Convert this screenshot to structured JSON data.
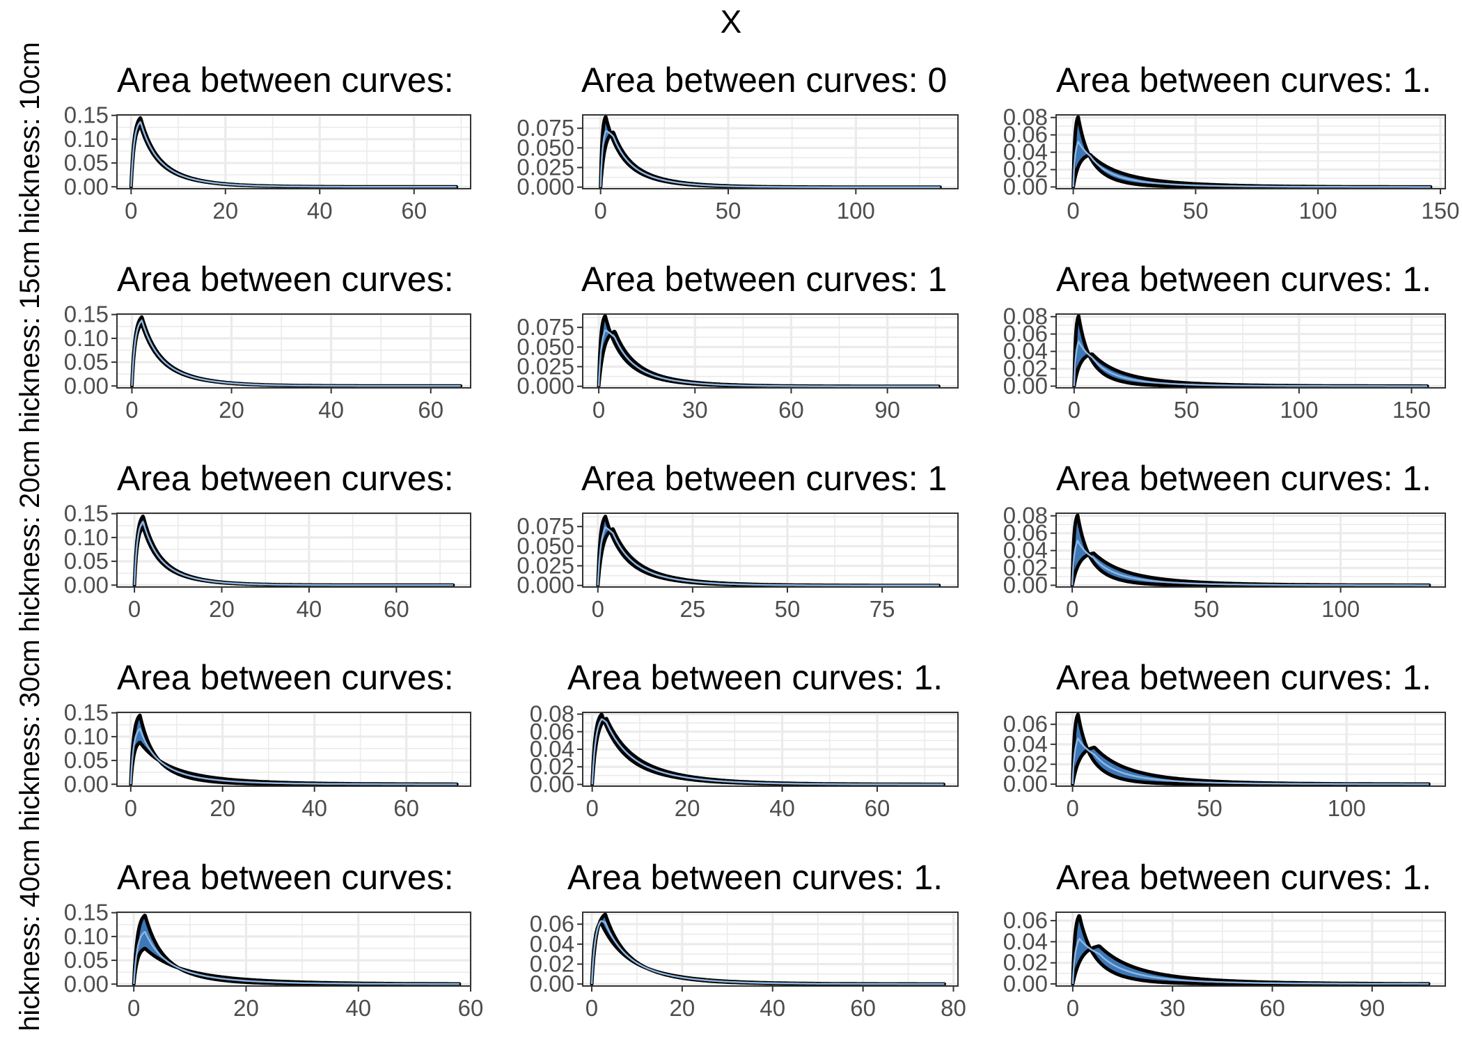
{
  "figure": {
    "title": "X"
  },
  "chart_data": [
    {
      "type": "area",
      "row": 0,
      "col": 0,
      "row_label": "hickness: 10cm",
      "title": "Area between curves: ",
      "xlim": [
        -3,
        72
      ],
      "x_ticks": [
        0,
        20,
        40,
        60
      ],
      "ylim": [
        -0.004,
        0.151
      ],
      "y_ticks": [
        0,
        0.05,
        0.1,
        0.15
      ],
      "y_tick_labels": [
        "0.00",
        "0.05",
        "0.10",
        "0.15"
      ],
      "x_max": 69,
      "upper": {
        "peak_x": 2,
        "peak_y": 0.145,
        "tail": 7
      },
      "lower": {
        "peak_x": 2,
        "peak_y": 0.128,
        "tail": 7
      }
    },
    {
      "type": "area",
      "row": 0,
      "col": 1,
      "row_label": "hickness: 10cm",
      "title": "Area between curves: 0",
      "xlim": [
        -7,
        140
      ],
      "x_ticks": [
        0,
        50,
        100
      ],
      "ylim": [
        -0.002,
        0.092
      ],
      "y_ticks": [
        0,
        0.025,
        0.05,
        0.075
      ],
      "y_tick_labels": [
        "0.000",
        "0.025",
        "0.050",
        "0.075"
      ],
      "x_max": 133,
      "upper": {
        "peak_x": 2,
        "peak_y": 0.09,
        "tail": 12
      },
      "lower": {
        "peak_x": 5,
        "peak_y": 0.07,
        "tail": 14
      }
    },
    {
      "type": "area",
      "row": 0,
      "col": 2,
      "row_label": "hickness: 10cm",
      "title": "Area between curves: 1.",
      "xlim": [
        -7,
        152
      ],
      "x_ticks": [
        0,
        50,
        100,
        150
      ],
      "ylim": [
        -0.002,
        0.083
      ],
      "y_ticks": [
        0,
        0.02,
        0.04,
        0.06,
        0.08
      ],
      "y_tick_labels": [
        "0.00",
        "0.02",
        "0.04",
        "0.06",
        "0.08"
      ],
      "x_max": 146,
      "upper": {
        "peak_x": 2,
        "peak_y": 0.081,
        "tail": 9
      },
      "lower": {
        "peak_x": 7,
        "peak_y": 0.037,
        "tail": 24
      }
    },
    {
      "type": "area",
      "row": 1,
      "col": 0,
      "row_label": "hickness: 15cm",
      "title": "Area between curves: ",
      "xlim": [
        -3,
        68
      ],
      "x_ticks": [
        0,
        20,
        40,
        60
      ],
      "ylim": [
        -0.004,
        0.151
      ],
      "y_ticks": [
        0,
        0.05,
        0.1,
        0.15
      ],
      "y_tick_labels": [
        "0.00",
        "0.05",
        "0.10",
        "0.15"
      ],
      "x_max": 66,
      "upper": {
        "peak_x": 2,
        "peak_y": 0.145,
        "tail": 7
      },
      "lower": {
        "peak_x": 2,
        "peak_y": 0.13,
        "tail": 7
      }
    },
    {
      "type": "area",
      "row": 1,
      "col": 1,
      "row_label": "hickness: 15cm",
      "title": "Area between curves: 1",
      "xlim": [
        -5,
        112
      ],
      "x_ticks": [
        0,
        30,
        60,
        90
      ],
      "ylim": [
        -0.002,
        0.092
      ],
      "y_ticks": [
        0,
        0.025,
        0.05,
        0.075
      ],
      "y_tick_labels": [
        "0.000",
        "0.025",
        "0.050",
        "0.075"
      ],
      "x_max": 106,
      "upper": {
        "peak_x": 2,
        "peak_y": 0.09,
        "tail": 10
      },
      "lower": {
        "peak_x": 5,
        "peak_y": 0.07,
        "tail": 12
      }
    },
    {
      "type": "area",
      "row": 1,
      "col": 2,
      "row_label": "hickness: 15cm",
      "title": "Area between curves: 1.",
      "xlim": [
        -8,
        165
      ],
      "x_ticks": [
        0,
        50,
        100,
        150
      ],
      "ylim": [
        -0.002,
        0.083
      ],
      "y_ticks": [
        0,
        0.02,
        0.04,
        0.06,
        0.08
      ],
      "y_tick_labels": [
        "0.00",
        "0.02",
        "0.04",
        "0.06",
        "0.08"
      ],
      "x_max": 157,
      "upper": {
        "peak_x": 2,
        "peak_y": 0.081,
        "tail": 9
      },
      "lower": {
        "peak_x": 8,
        "peak_y": 0.037,
        "tail": 24
      }
    },
    {
      "type": "area",
      "row": 2,
      "col": 0,
      "row_label": "hickness: 20cm",
      "title": "Area between curves: ",
      "xlim": [
        -4,
        77
      ],
      "x_ticks": [
        0,
        20,
        40,
        60
      ],
      "ylim": [
        -0.004,
        0.151
      ],
      "y_ticks": [
        0,
        0.05,
        0.1,
        0.15
      ],
      "y_tick_labels": [
        "0.00",
        "0.05",
        "0.10",
        "0.15"
      ],
      "x_max": 73,
      "upper": {
        "peak_x": 2,
        "peak_y": 0.145,
        "tail": 7
      },
      "lower": {
        "peak_x": 2,
        "peak_y": 0.122,
        "tail": 7
      }
    },
    {
      "type": "area",
      "row": 2,
      "col": 1,
      "row_label": "hickness: 20cm",
      "title": "Area between curves: 1",
      "xlim": [
        -4,
        95
      ],
      "x_ticks": [
        0,
        25,
        50,
        75
      ],
      "ylim": [
        -0.002,
        0.092
      ],
      "y_ticks": [
        0,
        0.025,
        0.05,
        0.075
      ],
      "y_tick_labels": [
        "0.000",
        "0.025",
        "0.050",
        "0.075"
      ],
      "x_max": 90,
      "upper": {
        "peak_x": 2,
        "peak_y": 0.088,
        "tail": 9
      },
      "lower": {
        "peak_x": 4,
        "peak_y": 0.072,
        "tail": 11
      }
    },
    {
      "type": "area",
      "row": 2,
      "col": 2,
      "row_label": "hickness: 20cm",
      "title": "Area between curves: 1.",
      "xlim": [
        -6,
        139
      ],
      "x_ticks": [
        0,
        50,
        100
      ],
      "ylim": [
        -0.002,
        0.083
      ],
      "y_ticks": [
        0,
        0.02,
        0.04,
        0.06,
        0.08
      ],
      "y_tick_labels": [
        "0.00",
        "0.02",
        "0.04",
        "0.06",
        "0.08"
      ],
      "x_max": 133,
      "upper": {
        "peak_x": 2,
        "peak_y": 0.081,
        "tail": 8
      },
      "lower": {
        "peak_x": 8,
        "peak_y": 0.037,
        "tail": 22
      }
    },
    {
      "type": "area",
      "row": 3,
      "col": 0,
      "row_label": "hickness: 30cm",
      "title": "Area between curves: ",
      "xlim": [
        -3,
        74
      ],
      "x_ticks": [
        0,
        20,
        40,
        60
      ],
      "ylim": [
        -0.004,
        0.151
      ],
      "y_ticks": [
        0,
        0.05,
        0.1,
        0.15
      ],
      "y_tick_labels": [
        "0.00",
        "0.05",
        "0.10",
        "0.15"
      ],
      "x_max": 71,
      "upper": {
        "peak_x": 2,
        "peak_y": 0.145,
        "tail": 6
      },
      "lower": {
        "peak_x": 2,
        "peak_y": 0.088,
        "tail": 12
      }
    },
    {
      "type": "area",
      "row": 3,
      "col": 1,
      "row_label": "hickness: 30cm",
      "title": "Area between curves: 1.",
      "xlim": [
        -2,
        77
      ],
      "x_ticks": [
        0,
        20,
        40,
        60
      ],
      "ylim": [
        -0.002,
        0.082
      ],
      "y_ticks": [
        0,
        0.02,
        0.04,
        0.06,
        0.08
      ],
      "y_tick_labels": [
        "0.00",
        "0.02",
        "0.04",
        "0.06",
        "0.08"
      ],
      "x_max": 74,
      "upper": {
        "peak_x": 2,
        "peak_y": 0.08,
        "tail": 9
      },
      "lower": {
        "peak_x": 3,
        "peak_y": 0.075,
        "tail": 11
      }
    },
    {
      "type": "area",
      "row": 3,
      "col": 2,
      "row_label": "hickness: 30cm",
      "title": "Area between curves: 1.",
      "xlim": [
        -6,
        136
      ],
      "x_ticks": [
        0,
        50,
        100
      ],
      "ylim": [
        -0.002,
        0.072
      ],
      "y_ticks": [
        0,
        0.02,
        0.04,
        0.06
      ],
      "y_tick_labels": [
        "0.00",
        "0.02",
        "0.04",
        "0.06"
      ],
      "x_max": 130,
      "upper": {
        "peak_x": 2,
        "peak_y": 0.07,
        "tail": 8
      },
      "lower": {
        "peak_x": 8,
        "peak_y": 0.037,
        "tail": 22
      }
    },
    {
      "type": "area",
      "row": 4,
      "col": 0,
      "row_label": "hickness: 40cm",
      "title": "Area between curves: ",
      "xlim": [
        -3,
        60
      ],
      "x_ticks": [
        0,
        20,
        40,
        60
      ],
      "ylim": [
        -0.004,
        0.151
      ],
      "y_ticks": [
        0,
        0.05,
        0.1,
        0.15
      ],
      "y_tick_labels": [
        "0.00",
        "0.05",
        "0.10",
        "0.15"
      ],
      "x_max": 58,
      "upper": {
        "peak_x": 2,
        "peak_y": 0.145,
        "tail": 6
      },
      "lower": {
        "peak_x": 2,
        "peak_y": 0.075,
        "tail": 12
      }
    },
    {
      "type": "area",
      "row": 4,
      "col": 1,
      "row_label": "hickness: 40cm",
      "title": "Area between curves: 1.",
      "xlim": [
        -2,
        81
      ],
      "x_ticks": [
        0,
        20,
        40,
        60,
        80
      ],
      "ylim": [
        -0.002,
        0.072
      ],
      "y_ticks": [
        0,
        0.02,
        0.04,
        0.06
      ],
      "y_tick_labels": [
        "0.00",
        "0.02",
        "0.04",
        "0.06"
      ],
      "x_max": 78,
      "upper": {
        "peak_x": 3,
        "peak_y": 0.07,
        "tail": 9
      },
      "lower": {
        "peak_x": 2,
        "peak_y": 0.062,
        "tail": 11
      }
    },
    {
      "type": "area",
      "row": 4,
      "col": 2,
      "row_label": "hickness: 40cm",
      "title": "Area between curves: 1.",
      "xlim": [
        -5,
        112
      ],
      "x_ticks": [
        0,
        30,
        60,
        90
      ],
      "ylim": [
        -0.002,
        0.068
      ],
      "y_ticks": [
        0,
        0.02,
        0.04,
        0.06
      ],
      "y_tick_labels": [
        "0.00",
        "0.02",
        "0.04",
        "0.06"
      ],
      "x_max": 107,
      "upper": {
        "peak_x": 2,
        "peak_y": 0.065,
        "tail": 8
      },
      "lower": {
        "peak_x": 8,
        "peak_y": 0.036,
        "tail": 20
      }
    }
  ]
}
